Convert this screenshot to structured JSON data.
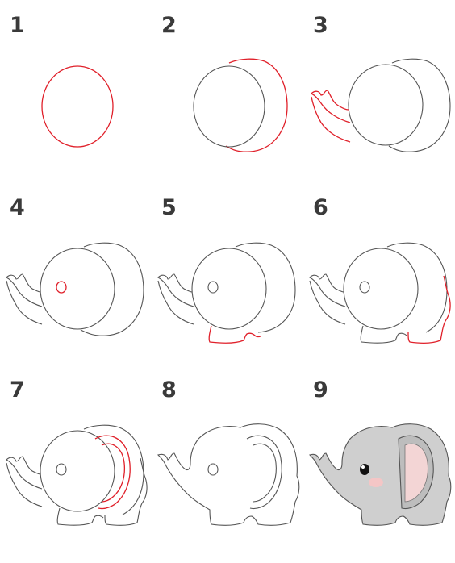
{
  "tutorial": {
    "subject": "elephant",
    "colors": {
      "outline": "#555555",
      "new_line": "#e0202a",
      "body_fill": "#cfcfcf",
      "ear_fill": "#f3d5d5",
      "cheek_fill": "#f4c6c6"
    },
    "steps": [
      {
        "number": "1"
      },
      {
        "number": "2"
      },
      {
        "number": "3"
      },
      {
        "number": "4"
      },
      {
        "number": "5"
      },
      {
        "number": "6"
      },
      {
        "number": "7"
      },
      {
        "number": "8"
      },
      {
        "number": "9"
      }
    ]
  }
}
